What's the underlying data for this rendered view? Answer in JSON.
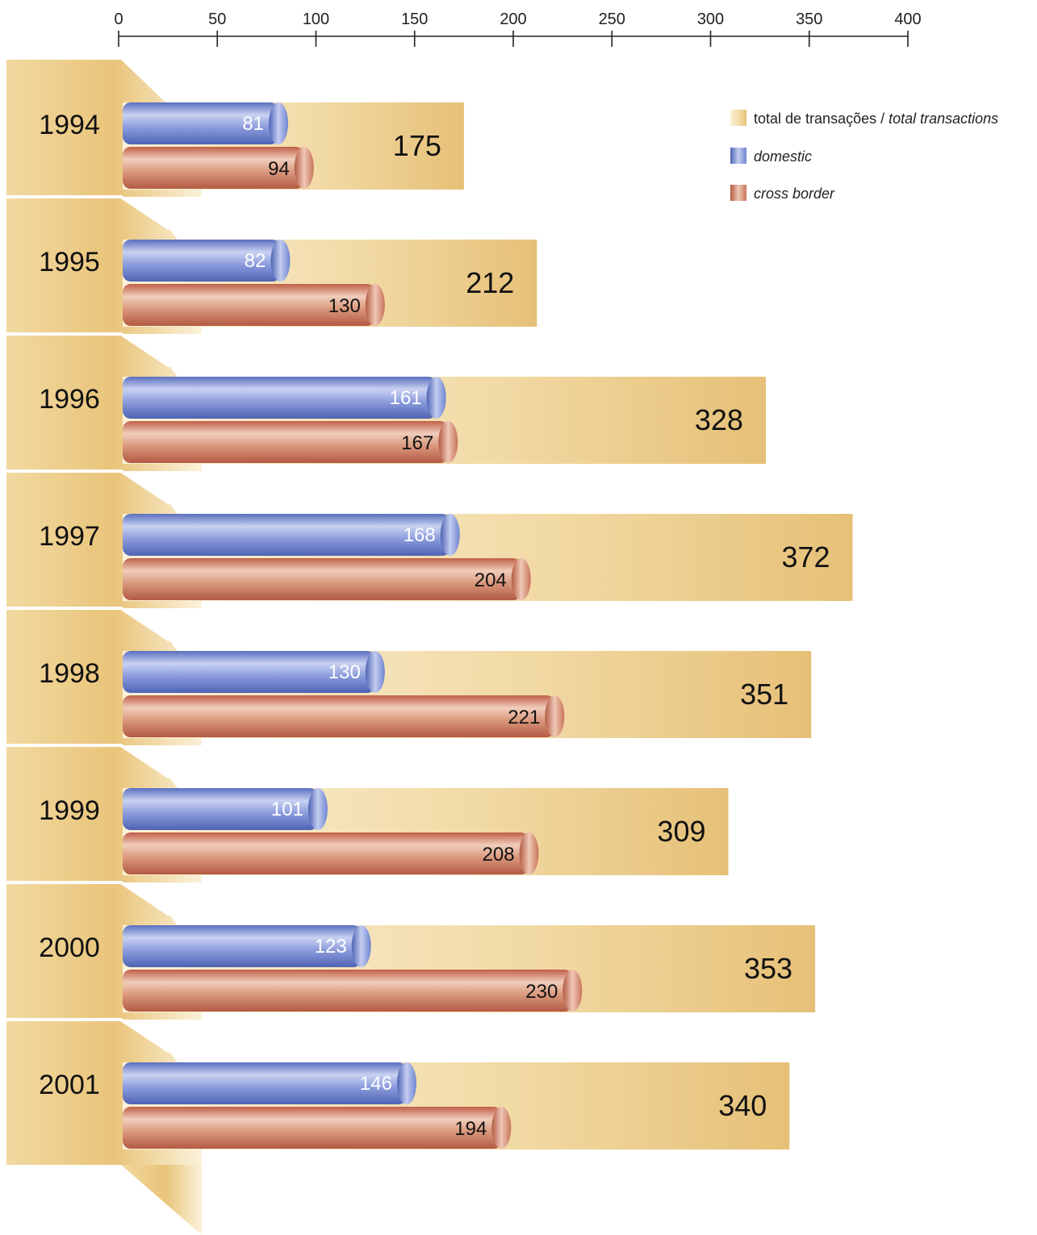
{
  "chart_data": {
    "type": "bar",
    "orientation": "horizontal",
    "categories": [
      "1994",
      "1995",
      "1996",
      "1997",
      "1998",
      "1999",
      "2000",
      "2001"
    ],
    "series": [
      {
        "name": "total de transações / total transactions",
        "values": [
          175,
          212,
          328,
          372,
          351,
          309,
          353,
          340
        ]
      },
      {
        "name": "domestic",
        "values": [
          81,
          82,
          161,
          168,
          130,
          101,
          123,
          146
        ]
      },
      {
        "name": "cross border",
        "values": [
          94,
          130,
          167,
          204,
          221,
          208,
          230,
          194
        ]
      }
    ],
    "x_ticks": [
      "0",
      "50",
      "100",
      "150",
      "200",
      "250",
      "300",
      "350",
      "400"
    ],
    "xlim": [
      0,
      400
    ],
    "legend": {
      "placement": "top-right",
      "total_prefix": "total de transações / ",
      "total_suffix": "total transactions",
      "domestic": "domestic",
      "cross_border": "cross border"
    },
    "colors": {
      "total": "#e8c478",
      "domestic": "#6a82cc",
      "cross_border": "#c8765a"
    }
  }
}
